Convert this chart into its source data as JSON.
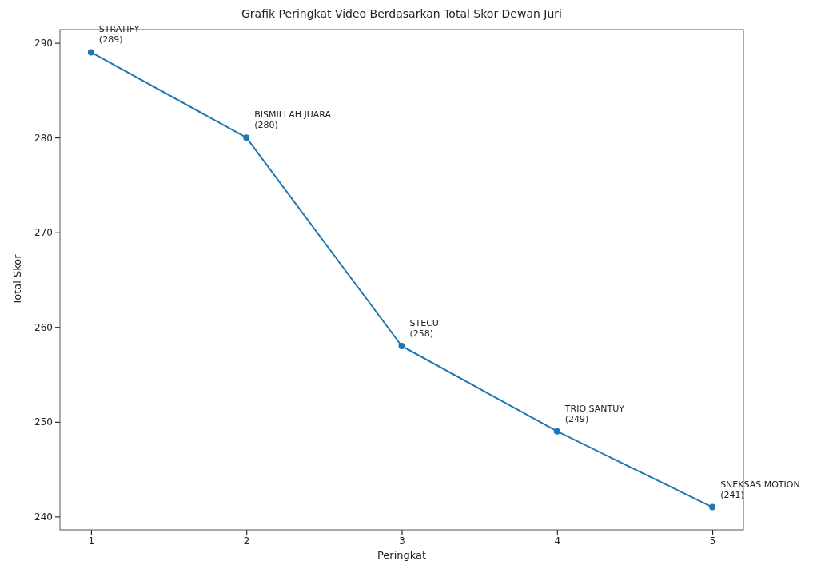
{
  "chart_data": {
    "type": "line",
    "title": "Grafik Peringkat Video Berdasarkan Total Skor Dewan Juri",
    "xlabel": "Peringkat",
    "ylabel": "Total Skor",
    "x": [
      1,
      2,
      3,
      4,
      5
    ],
    "series": [
      {
        "color": "#1f77b4",
        "values": [
          289,
          280,
          258,
          249,
          241
        ]
      }
    ],
    "xlim": [
      0.8,
      5.2
    ],
    "xticks": [
      1,
      2,
      3,
      4,
      5
    ],
    "ylim": [
      238.6,
      291.4
    ],
    "yticks": [
      240,
      250,
      260,
      270,
      280,
      290
    ],
    "marker": "circle",
    "line_style": "solid",
    "grid": false,
    "annotations": [
      {
        "text": "STRATIFY\n(289)",
        "x": 1,
        "y": 289
      },
      {
        "text": "BISMILLAH JUARA\n(280)",
        "x": 2,
        "y": 280
      },
      {
        "text": "STECU\n(258)",
        "x": 3,
        "y": 258
      },
      {
        "text": "TRIO SANTUY\n(249)",
        "x": 4,
        "y": 249
      },
      {
        "text": "SNEKSAS MOTION\n(241)",
        "x": 5,
        "y": 241
      }
    ]
  }
}
